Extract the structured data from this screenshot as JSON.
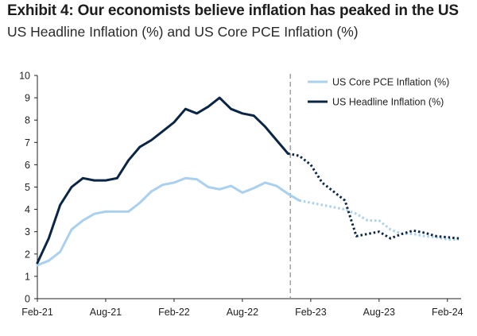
{
  "title": "Exhibit 4: Our economists believe inflation has peaked in the US",
  "subtitle": "US Headline Inflation (%) and US Core PCE Inflation (%)",
  "colors": {
    "headline": "#0b2545",
    "core": "#a9d0ee",
    "divider": "#9a9a9a",
    "axis": "#222222"
  },
  "chart_data": {
    "type": "line",
    "x_tick_labels": [
      "Feb-21",
      "Aug-21",
      "Feb-22",
      "Aug-22",
      "Feb-23",
      "Aug-23",
      "Feb-24"
    ],
    "x_tick_months": [
      "2021-02",
      "2021-08",
      "2022-02",
      "2022-08",
      "2023-02",
      "2023-08",
      "2024-02"
    ],
    "ylim": [
      0,
      10
    ],
    "y_ticks": [
      "0",
      "1",
      "2",
      "3",
      "4",
      "5",
      "6",
      "7",
      "8",
      "9",
      "10"
    ],
    "forecast_start": "2022-12",
    "legend_position": "top-right",
    "grid": false,
    "series": [
      {
        "name": "US Core PCE Inflation (%)",
        "color": "#a9d0ee",
        "actual": [
          [
            "2021-02",
            1.5
          ],
          [
            "2021-03",
            1.7
          ],
          [
            "2021-04",
            2.1
          ],
          [
            "2021-05",
            3.1
          ],
          [
            "2021-06",
            3.5
          ],
          [
            "2021-07",
            3.8
          ],
          [
            "2021-08",
            3.9
          ],
          [
            "2021-09",
            3.9
          ],
          [
            "2021-10",
            3.9
          ],
          [
            "2021-11",
            4.3
          ],
          [
            "2021-12",
            4.8
          ],
          [
            "2022-01",
            5.1
          ],
          [
            "2022-02",
            5.2
          ],
          [
            "2022-03",
            5.4
          ],
          [
            "2022-04",
            5.35
          ],
          [
            "2022-05",
            5.0
          ],
          [
            "2022-06",
            4.9
          ],
          [
            "2022-07",
            5.05
          ],
          [
            "2022-08",
            4.75
          ],
          [
            "2022-09",
            4.95
          ],
          [
            "2022-10",
            5.2
          ],
          [
            "2022-11",
            5.05
          ],
          [
            "2022-12",
            4.7
          ],
          [
            "2023-01",
            4.4
          ]
        ],
        "forecast": [
          [
            "2023-01",
            4.4
          ],
          [
            "2023-02",
            4.3
          ],
          [
            "2023-03",
            4.2
          ],
          [
            "2023-04",
            4.1
          ],
          [
            "2023-05",
            4.0
          ],
          [
            "2023-06",
            3.8
          ],
          [
            "2023-07",
            3.5
          ],
          [
            "2023-08",
            3.5
          ],
          [
            "2023-09",
            3.1
          ],
          [
            "2023-10",
            2.9
          ],
          [
            "2023-11",
            2.9
          ],
          [
            "2023-12",
            2.8
          ],
          [
            "2024-01",
            2.75
          ],
          [
            "2024-02",
            2.65
          ],
          [
            "2024-03",
            2.65
          ]
        ]
      },
      {
        "name": "US Headline Inflation (%)",
        "color": "#0b2545",
        "actual": [
          [
            "2021-02",
            1.6
          ],
          [
            "2021-03",
            2.7
          ],
          [
            "2021-04",
            4.2
          ],
          [
            "2021-05",
            5.0
          ],
          [
            "2021-06",
            5.4
          ],
          [
            "2021-07",
            5.3
          ],
          [
            "2021-08",
            5.3
          ],
          [
            "2021-09",
            5.4
          ],
          [
            "2021-10",
            6.2
          ],
          [
            "2021-11",
            6.8
          ],
          [
            "2021-12",
            7.1
          ],
          [
            "2022-01",
            7.5
          ],
          [
            "2022-02",
            7.9
          ],
          [
            "2022-03",
            8.5
          ],
          [
            "2022-04",
            8.3
          ],
          [
            "2022-05",
            8.6
          ],
          [
            "2022-06",
            9.0
          ],
          [
            "2022-07",
            8.5
          ],
          [
            "2022-08",
            8.3
          ],
          [
            "2022-09",
            8.2
          ],
          [
            "2022-10",
            7.7
          ],
          [
            "2022-11",
            7.1
          ],
          [
            "2022-12",
            6.5
          ]
        ],
        "forecast": [
          [
            "2022-12",
            6.5
          ],
          [
            "2023-01",
            6.4
          ],
          [
            "2023-02",
            6.0
          ],
          [
            "2023-03",
            5.2
          ],
          [
            "2023-04",
            4.8
          ],
          [
            "2023-05",
            4.4
          ],
          [
            "2023-06",
            2.8
          ],
          [
            "2023-07",
            2.9
          ],
          [
            "2023-08",
            3.0
          ],
          [
            "2023-09",
            2.7
          ],
          [
            "2023-10",
            2.9
          ],
          [
            "2023-11",
            3.05
          ],
          [
            "2023-12",
            2.95
          ],
          [
            "2024-01",
            2.8
          ],
          [
            "2024-02",
            2.75
          ],
          [
            "2024-03",
            2.7
          ]
        ]
      }
    ]
  }
}
